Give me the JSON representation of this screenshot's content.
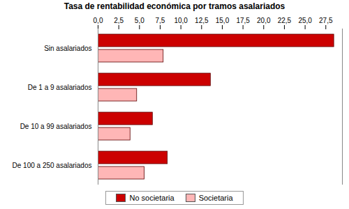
{
  "chart_data": {
    "type": "bar",
    "orientation": "horizontal",
    "title": "Tasa de rentabilidad económica por tramos asalariados",
    "categories": [
      "Sin asalariados",
      "De 1 a 9 asalariados",
      "De 10 a 99 asalariados",
      "De 100 a 250 asalariados"
    ],
    "series": [
      {
        "name": "No societaria",
        "color": "#cc0000",
        "values": [
          28.5,
          13.6,
          6.6,
          8.4
        ]
      },
      {
        "name": "Societaria",
        "color": "#ffb6b6",
        "values": [
          7.9,
          4.7,
          3.9,
          5.6
        ]
      }
    ],
    "xlim": [
      0,
      29.5
    ],
    "xticks": [
      {
        "value": 0,
        "label": "0,0"
      },
      {
        "value": 2.5,
        "label": "2,5"
      },
      {
        "value": 5,
        "label": "5,0"
      },
      {
        "value": 7.5,
        "label": "7,5"
      },
      {
        "value": 10,
        "label": "10,0"
      },
      {
        "value": 12.5,
        "label": "12,5"
      },
      {
        "value": 15,
        "label": "15,0"
      },
      {
        "value": 17.5,
        "label": "17,5"
      },
      {
        "value": 20,
        "label": "20,0"
      },
      {
        "value": 22.5,
        "label": "22,5"
      },
      {
        "value": 25,
        "label": "25,0"
      },
      {
        "value": 27.5,
        "label": "27,5"
      }
    ],
    "legend": "bottom",
    "grid": false
  }
}
